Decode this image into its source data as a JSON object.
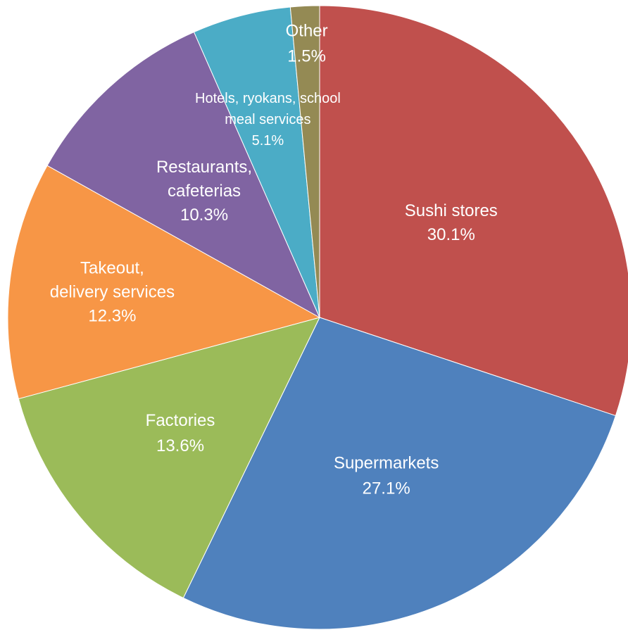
{
  "chart_data": {
    "type": "pie",
    "start_angle_deg": 0,
    "direction": "clockwise",
    "slices": [
      {
        "label": [
          "Sushi stores"
        ],
        "value": 30.1,
        "value_label": "30.1%",
        "color": "#C0504D"
      },
      {
        "label": [
          "Supermarkets"
        ],
        "value": 27.1,
        "value_label": "27.1%",
        "color": "#4F81BD"
      },
      {
        "label": [
          "Factories"
        ],
        "value": 13.6,
        "value_label": "13.6%",
        "color": "#9BBB59"
      },
      {
        "label": [
          "Takeout,",
          "delivery services"
        ],
        "value": 12.3,
        "value_label": "12.3%",
        "color": "#F79646"
      },
      {
        "label": [
          "Restaurants,",
          "cafeterias"
        ],
        "value": 10.3,
        "value_label": "10.3%",
        "color": "#8064A2"
      },
      {
        "label": [
          "Hotels, ryokans, school",
          "meal services"
        ],
        "value": 5.1,
        "value_label": "5.1%",
        "color": "#4BACC6"
      },
      {
        "label": [
          "Other"
        ],
        "value": 1.5,
        "value_label": "1.5%",
        "color": "#948A54"
      }
    ]
  }
}
